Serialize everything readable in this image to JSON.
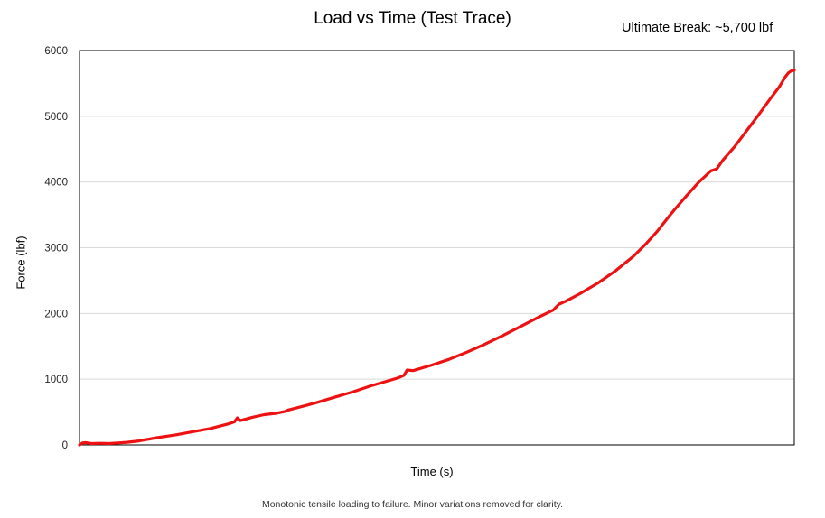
{
  "chart_data": {
    "type": "line",
    "title": "Load vs Time (Test Trace)",
    "xlabel": "Time (s)",
    "ylabel": "Force (lbf)",
    "ylim": [
      0,
      6000
    ],
    "yticks": [
      "0",
      "1000",
      "2000",
      "3000",
      "4000",
      "5000",
      "6000"
    ],
    "grid": "horizontal",
    "legend": "none",
    "line_color": "#ee1111",
    "annotation": "Ultimate Break: ~5,700 lbf",
    "caption": "Monotonic tensile loading to failure. Minor variations removed for clarity.",
    "series": [
      {
        "points": [
          [
            0.0,
            0
          ],
          [
            0.005,
            30
          ],
          [
            0.01,
            35
          ],
          [
            0.02,
            20
          ],
          [
            0.035,
            25
          ],
          [
            0.05,
            20
          ],
          [
            0.065,
            30
          ],
          [
            0.08,
            40
          ],
          [
            0.1,
            60
          ],
          [
            0.13,
            110
          ],
          [
            0.16,
            150
          ],
          [
            0.19,
            200
          ],
          [
            0.22,
            250
          ],
          [
            0.25,
            320
          ],
          [
            0.26,
            350
          ],
          [
            0.265,
            410
          ],
          [
            0.27,
            370
          ],
          [
            0.29,
            420
          ],
          [
            0.31,
            460
          ],
          [
            0.33,
            480
          ],
          [
            0.345,
            510
          ],
          [
            0.35,
            530
          ],
          [
            0.38,
            600
          ],
          [
            0.4,
            650
          ],
          [
            0.43,
            730
          ],
          [
            0.46,
            810
          ],
          [
            0.49,
            900
          ],
          [
            0.52,
            980
          ],
          [
            0.535,
            1020
          ],
          [
            0.545,
            1060
          ],
          [
            0.55,
            1140
          ],
          [
            0.56,
            1130
          ],
          [
            0.59,
            1210
          ],
          [
            0.62,
            1300
          ],
          [
            0.65,
            1410
          ],
          [
            0.68,
            1530
          ],
          [
            0.71,
            1660
          ],
          [
            0.74,
            1800
          ],
          [
            0.77,
            1940
          ],
          [
            0.795,
            2050
          ],
          [
            0.805,
            2140
          ],
          [
            0.815,
            2180
          ],
          [
            0.84,
            2300
          ],
          [
            0.87,
            2460
          ],
          [
            0.9,
            2650
          ],
          [
            0.93,
            2870
          ],
          [
            0.95,
            3050
          ],
          [
            0.97,
            3250
          ],
          [
            0.99,
            3480
          ],
          [
            1.0,
            3590
          ],
          [
            1.02,
            3800
          ],
          [
            1.04,
            4000
          ],
          [
            1.06,
            4170
          ],
          [
            1.07,
            4200
          ],
          [
            1.08,
            4330
          ],
          [
            1.1,
            4540
          ],
          [
            1.12,
            4780
          ],
          [
            1.14,
            5020
          ],
          [
            1.16,
            5270
          ],
          [
            1.175,
            5450
          ],
          [
            1.185,
            5600
          ],
          [
            1.19,
            5660
          ],
          [
            1.195,
            5690
          ],
          [
            1.2,
            5700
          ]
        ]
      }
    ]
  }
}
